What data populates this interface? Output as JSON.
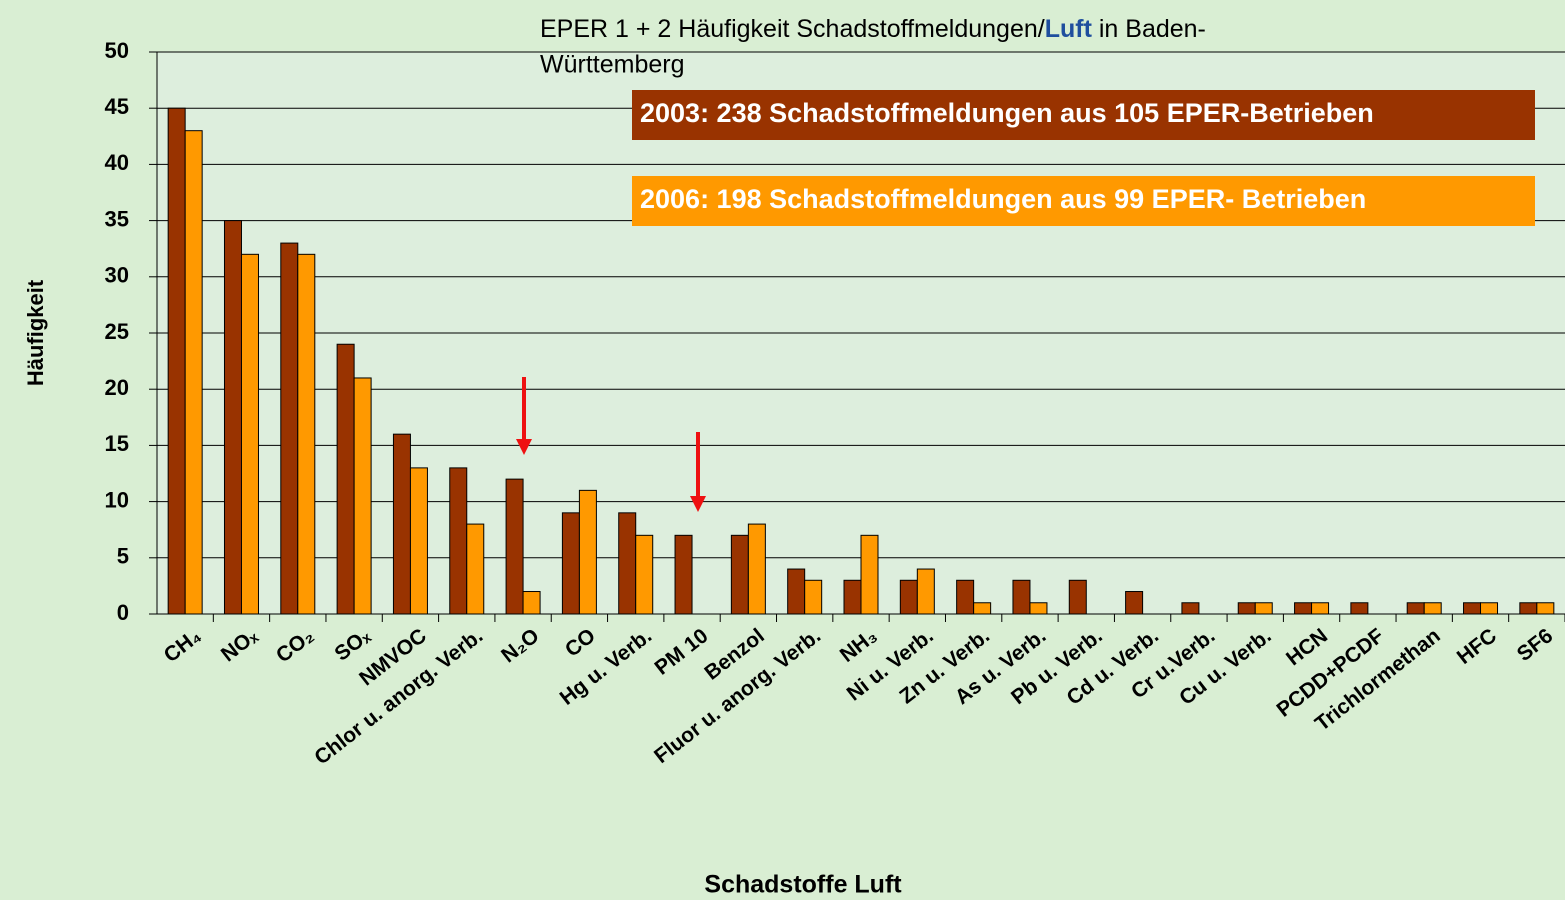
{
  "chart_data": {
    "type": "bar",
    "title_parts": [
      "EPER 1 + 2 Häufigkeit Schadstoffmeldungen/",
      "Luft",
      " in Baden-",
      "Württemberg"
    ],
    "x_label": "Schadstoffe Luft",
    "y_label": "Häufigkeit",
    "categories": [
      "CH₄",
      "NOₓ",
      "CO₂",
      "SOₓ",
      "NMVOC",
      "Chlor u. anorg. Verb.",
      "N₂O",
      "CO",
      "Hg u. Verb.",
      "PM 10",
      "Benzol",
      "Fluor u. anorg. Verb.",
      "NH₃",
      "Ni u. Verb.",
      "Zn u. Verb.",
      "As u. Verb.",
      "Pb u. Verb.",
      "Cd u. Verb.",
      "Cr u.Verb.",
      "Cu u. Verb.",
      "HCN",
      "PCDD+PCDF",
      "Trichlormethan",
      "HFC",
      "SF6"
    ],
    "series": [
      {
        "name": "2003: 238 Schadstoffmeldungen aus 105 EPER-Betrieben",
        "color": "#993300",
        "values": [
          45,
          35,
          33,
          24,
          16,
          13,
          12,
          9,
          9,
          7,
          7,
          4,
          3,
          3,
          3,
          3,
          3,
          2,
          1,
          1,
          1,
          1,
          1,
          1,
          1
        ]
      },
      {
        "name": "2006: 198 Schadstoffmeldungen aus  99 EPER- Betrieben",
        "color": "#ff9900",
        "values": [
          43,
          32,
          32,
          21,
          13,
          8,
          2,
          11,
          7,
          null,
          8,
          3,
          7,
          4,
          1,
          1,
          null,
          null,
          null,
          1,
          1,
          null,
          1,
          1,
          1
        ]
      }
    ],
    "ylim": [
      0,
      50
    ],
    "yticks": [
      0,
      5,
      10,
      15,
      20,
      25,
      30,
      35,
      40,
      45,
      50
    ],
    "grid": true
  }
}
